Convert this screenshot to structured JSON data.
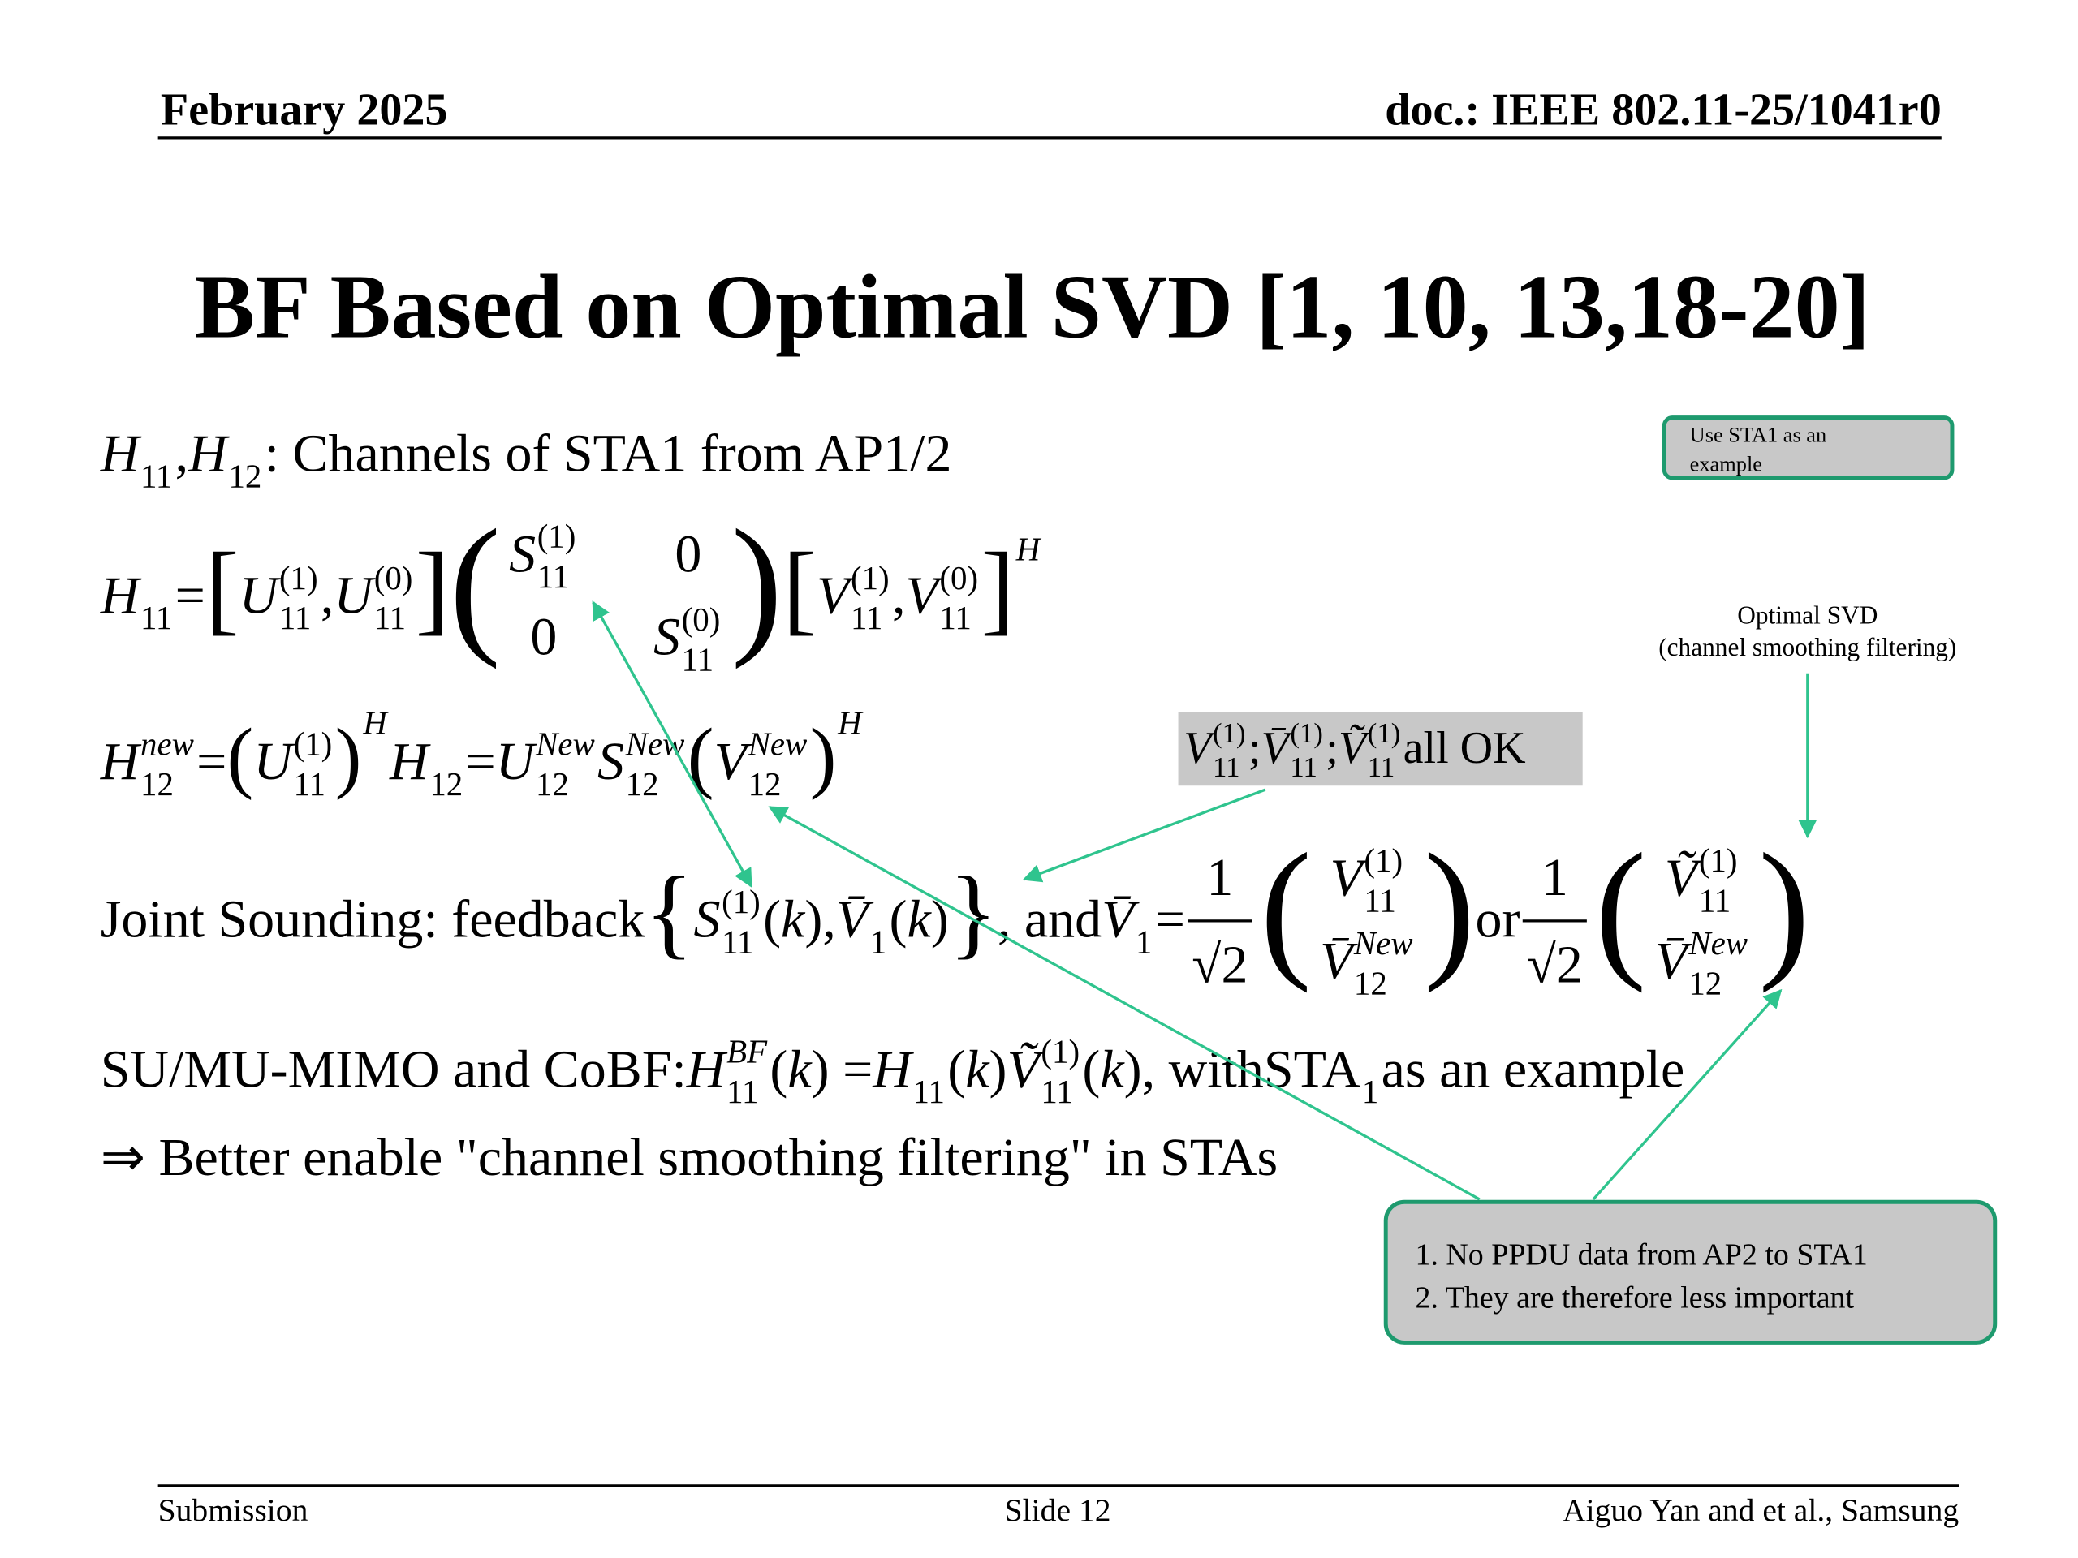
{
  "header": {
    "date": "February 2025",
    "doc": "doc.: IEEE 802.11-25/1041r0"
  },
  "title": "BF Based on Optimal SVD [1, 10, 13,18-20]",
  "lines": [
    {
      "tokens": [
        {
          "t": "H",
          "i": true,
          "sub": "11"
        },
        {
          "t": ", "
        },
        {
          "t": "H",
          "i": true,
          "sub": "12"
        },
        {
          "t": ": Channels of STA1 from AP1/2"
        }
      ]
    },
    {
      "tokens": [
        {
          "t": "H",
          "i": true,
          "sub": "11"
        },
        {
          "t": " = "
        },
        {
          "t": "[",
          "big": true
        },
        {
          "t": "U",
          "i": true,
          "sub": "11",
          "sup": "(1)"
        },
        {
          "t": ","
        },
        {
          "t": "U",
          "i": true,
          "sub": "11",
          "sup": "(0)"
        },
        {
          "t": "]",
          "big": true
        },
        {
          "t": "(",
          "big": true
        },
        {
          "rows": [
            [
              [
                {
                  "t": "S",
                  "i": true,
                  "sub": "11",
                  "sup": "(1)"
                }
              ],
              [
                {
                  "t": "0"
                }
              ]
            ],
            [
              [
                {
                  "t": "0"
                }
              ],
              [
                {
                  "t": "S",
                  "i": true,
                  "sub": "11",
                  "sup": "(0)"
                }
              ]
            ]
          ]
        },
        {
          "t": ")",
          "big": true
        },
        {
          "t": "[",
          "big": true
        },
        {
          "t": "V",
          "i": true,
          "sub": "11",
          "sup": "(1)"
        },
        {
          "t": ","
        },
        {
          "t": "V",
          "i": true,
          "sub": "11",
          "sup": "(0)"
        },
        {
          "t": "]",
          "big": true,
          "sup": "H"
        }
      ]
    },
    {
      "tokens": [
        {
          "t": "H",
          "i": true,
          "sub": "12",
          "sup": "new"
        },
        {
          "t": " = "
        },
        {
          "t": "(",
          "big": true
        },
        {
          "t": "U",
          "i": true,
          "sub": "11",
          "sup": "(1)"
        },
        {
          "t": ")",
          "big": true,
          "sup": "H"
        },
        {
          "t": " "
        },
        {
          "t": "H",
          "i": true,
          "sub": "12"
        },
        {
          "t": " = "
        },
        {
          "t": "U",
          "i": true,
          "sub": "12",
          "sup": "New"
        },
        {
          "t": "S",
          "i": true,
          "sub": "12",
          "sup": "New"
        },
        {
          "t": " "
        },
        {
          "t": "(",
          "big": true
        },
        {
          "t": "V",
          "i": true,
          "sub": "12",
          "sup": "New"
        },
        {
          "t": ")",
          "big": true,
          "sup": "H"
        }
      ]
    },
    {
      "tokens": [
        {
          "t": "Joint Sounding: feedback "
        },
        {
          "t": "{",
          "big": true
        },
        {
          "t": "S",
          "i": true,
          "sub": "11",
          "sup": "(1)"
        },
        {
          "t": "("
        },
        {
          "t": "k",
          "i": true
        },
        {
          "t": "),"
        },
        {
          "t": "V̄",
          "i": true,
          "sub": "1"
        },
        {
          "t": "("
        },
        {
          "t": "k",
          "i": true
        },
        {
          "t": ")"
        },
        {
          "t": "}",
          "big": true
        },
        {
          "t": ", and "
        },
        {
          "t": "V̄",
          "i": true,
          "sub": "1"
        },
        {
          "t": " = "
        },
        {
          "num": [
            {
              "t": "1"
            }
          ],
          "den": [
            {
              "t": "√2"
            }
          ]
        },
        {
          "t": "(",
          "big": true
        },
        {
          "rows": [
            [
              [
                {
                  "t": "V",
                  "i": true,
                  "sub": "11",
                  "sup": "(1)"
                }
              ]
            ],
            [
              [
                {
                  "t": "V̄",
                  "i": true,
                  "sub": "12",
                  "sup": "New"
                }
              ]
            ]
          ]
        },
        {
          "t": ")",
          "big": true
        },
        {
          "t": " or "
        },
        {
          "num": [
            {
              "t": "1"
            }
          ],
          "den": [
            {
              "t": "√2"
            }
          ]
        },
        {
          "t": "(",
          "big": true
        },
        {
          "rows": [
            [
              [
                {
                  "t": "Ṽ",
                  "i": true,
                  "sub": "11",
                  "sup": "(1)"
                }
              ]
            ],
            [
              [
                {
                  "t": "V̄",
                  "i": true,
                  "sub": "12",
                  "sup": "New"
                }
              ]
            ]
          ]
        },
        {
          "t": ")",
          "big": true
        }
      ]
    },
    {
      "tokens": [
        {
          "t": "SU/MU-MIMO and CoBF: "
        },
        {
          "t": "H",
          "i": true,
          "sub": "11",
          "sup": "BF"
        },
        {
          "t": "("
        },
        {
          "t": "k",
          "i": true
        },
        {
          "t": ") = "
        },
        {
          "t": "H",
          "i": true,
          "sub": "11"
        },
        {
          "t": "("
        },
        {
          "t": "k",
          "i": true
        },
        {
          "t": ")"
        },
        {
          "t": "Ṽ",
          "i": true,
          "sub": "11",
          "sup": "(1)"
        },
        {
          "t": "("
        },
        {
          "t": "k",
          "i": true
        },
        {
          "t": "), with "
        },
        {
          "t": "STA",
          "sub": "1"
        },
        {
          "t": " as an example"
        }
      ]
    },
    {
      "tokens": [
        {
          "t": "⇒ Better enable \"channel smoothing filtering\" in STAs"
        }
      ]
    }
  ],
  "callouts": {
    "example_note": [
      "Use STA1 as an",
      "example"
    ],
    "optimal": [
      "Optimal SVD",
      "(channel smoothing filtering)"
    ],
    "ok_box": {
      "tokens": [
        {
          "t": "V",
          "i": true,
          "sub": "11",
          "sup": "(1)"
        },
        {
          "t": ";"
        },
        {
          "t": "V̄",
          "i": true,
          "sub": "11",
          "sup": "(1)"
        },
        {
          "t": ";"
        },
        {
          "t": "Ṽ",
          "i": true,
          "sub": "11",
          "sup": "(1)"
        },
        {
          "t": " all OK"
        }
      ]
    },
    "notes": [
      "1. No PPDU data from AP2 to STA1",
      "2. They are therefore less important"
    ]
  },
  "footer": {
    "left": "Submission",
    "center": "Slide 12",
    "right": "Aiguo Yan and et al., Samsung"
  }
}
